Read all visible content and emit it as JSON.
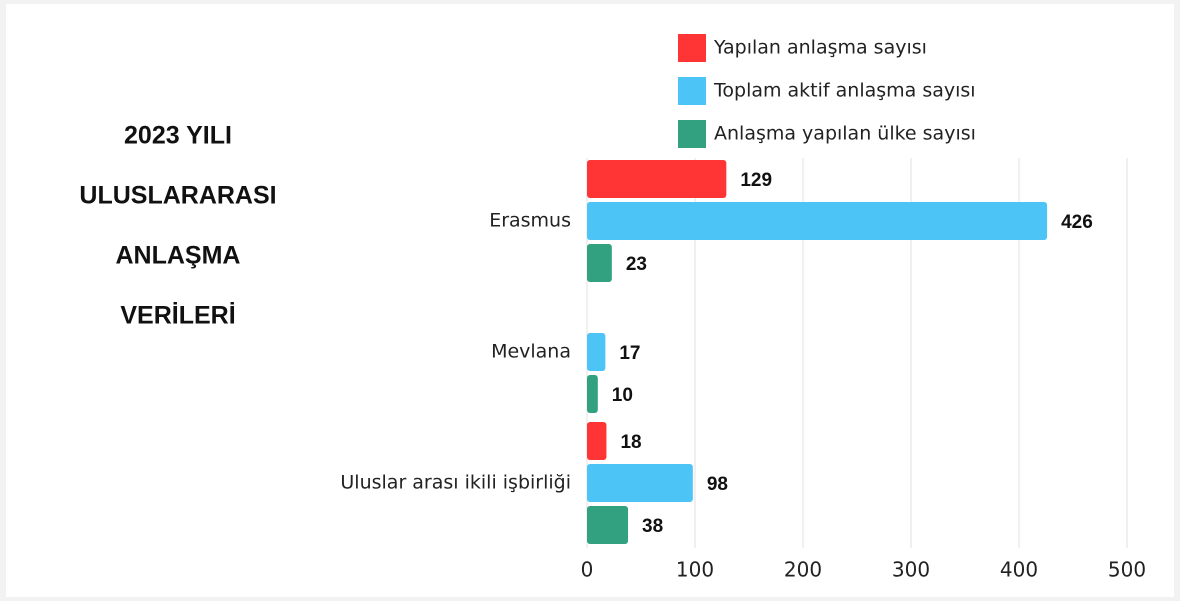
{
  "chart_data": {
    "type": "bar",
    "orientation": "horizontal",
    "title": [
      "2023 YILI",
      "ULUSLARARASI",
      "ANLAŞMA",
      "VERİLERİ"
    ],
    "categories": [
      "Erasmus",
      "Mevlana",
      "Uluslar arası ikili işbirliği"
    ],
    "series": [
      {
        "name": "Yapılan anlaşma sayısı",
        "color": "#ff3434",
        "values": [
          129,
          null,
          18
        ]
      },
      {
        "name": "Toplam aktif anlaşma sayısı",
        "color": "#4cc4f6",
        "values": [
          426,
          17,
          98
        ]
      },
      {
        "name": "Anlaşma yapılan ülke sayısı",
        "color": "#31a17f",
        "values": [
          23,
          10,
          38
        ]
      }
    ],
    "xlim": [
      0,
      500
    ],
    "xticks": [
      0,
      100,
      200,
      300,
      400,
      500
    ],
    "grid": true,
    "legend": "top"
  }
}
